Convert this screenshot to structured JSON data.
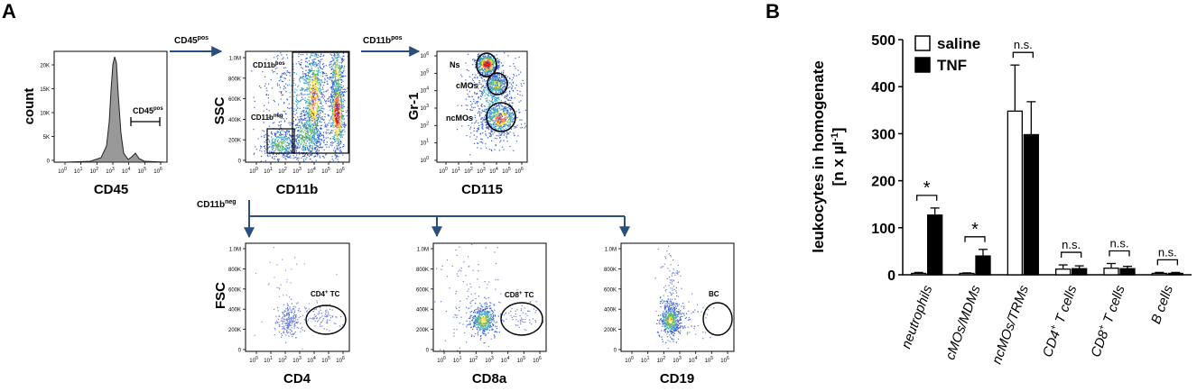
{
  "panel_a": {
    "label": "A",
    "histogram": {
      "ylabel": "count",
      "xlabel": "CD45",
      "gate_label": "CD45",
      "gate_sup": "pos",
      "yticks": [
        "0",
        "5K",
        "10K",
        "15K",
        "20K"
      ]
    },
    "arrow_cd45pos": {
      "text": "CD45",
      "sup": "pos"
    },
    "cd11b_plot": {
      "ylabel": "SSC",
      "xlabel": "CD11b",
      "gate_pos": {
        "text": "CD11b",
        "sup": "pos"
      },
      "gate_neg": {
        "text": "CD11b",
        "sup": "neg"
      },
      "yticks": [
        "0",
        "200K",
        "400K",
        "600K",
        "800K",
        "1.0M"
      ]
    },
    "arrow_cd11bpos": {
      "text": "CD11b",
      "sup": "pos"
    },
    "cd115_plot": {
      "ylabel": "Gr-1",
      "xlabel": "CD115",
      "gates": [
        "Ns",
        "cMOs",
        "ncMOs"
      ]
    },
    "arrow_cd11bneg": {
      "text": "CD11b",
      "sup": "neg"
    },
    "fsc_ylabel": "FSC",
    "cd4_plot": {
      "xlabel": "CD4",
      "gate": "CD4",
      "gate_sup": "+",
      "gate_suffix": " TC"
    },
    "cd8_plot": {
      "xlabel": "CD8a",
      "gate": "CD8",
      "gate_sup": "+",
      "gate_suffix": " TC"
    },
    "cd19_plot": {
      "xlabel": "CD19",
      "gate": "BC"
    },
    "fsc_yticks": [
      "0",
      "200K",
      "400K",
      "600K",
      "800K",
      "1.0M"
    ],
    "log_tick_base": "10",
    "log_tick_exps": [
      "0",
      "1",
      "2",
      "3",
      "4",
      "5",
      "6"
    ]
  },
  "chart_data": {
    "type": "bar",
    "panel_label": "B",
    "ylabel_line1": "leukocytes in homogenate",
    "ylabel_line2_pre": "[n x µl",
    "ylabel_line2_sup": "-1",
    "ylabel_line2_post": "]",
    "ylim": [
      0,
      500
    ],
    "yticks": [
      0,
      100,
      200,
      300,
      400,
      500
    ],
    "legend": {
      "position": "top-left"
    },
    "categories": [
      {
        "base": "neutrophils",
        "sup": "",
        "tail": ""
      },
      {
        "base": "cMOs/MDMs",
        "sup": "",
        "tail": ""
      },
      {
        "base": "ncMOs/TRMs",
        "sup": "",
        "tail": ""
      },
      {
        "base": "CD4",
        "sup": "+",
        "tail": " T cells"
      },
      {
        "base": "CD8",
        "sup": "+",
        "tail": " T cells"
      },
      {
        "base": "B cells",
        "sup": "",
        "tail": ""
      }
    ],
    "series": [
      {
        "name": "saline",
        "color": "#ffffff",
        "values": [
          3,
          3,
          348,
          12,
          14,
          3
        ],
        "errors": [
          2,
          1,
          98,
          9,
          10,
          2
        ]
      },
      {
        "name": "TNF",
        "color": "#000000",
        "values": [
          127,
          40,
          298,
          13,
          13,
          3
        ],
        "errors": [
          15,
          14,
          70,
          6,
          5,
          2
        ]
      }
    ],
    "significance": [
      "*",
      "*",
      "n.s.",
      "n.s.",
      "n.s.",
      "n.s."
    ]
  }
}
